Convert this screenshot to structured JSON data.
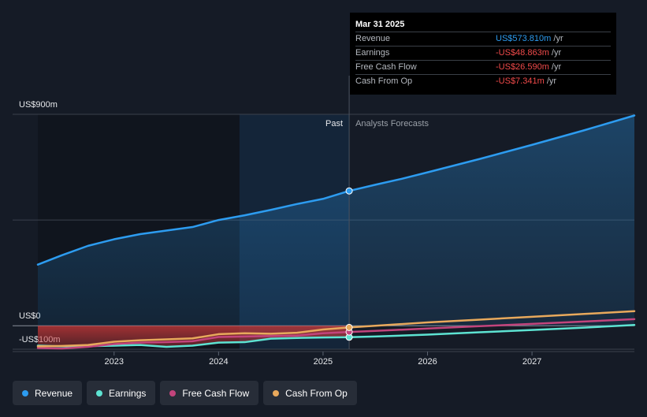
{
  "tooltip": {
    "date": "Mar 31 2025",
    "rows": [
      {
        "label": "Revenue",
        "value": "US$573.810m",
        "unit": " /yr",
        "color": "#2d9cf0"
      },
      {
        "label": "Earnings",
        "value": "-US$48.863m",
        "unit": " /yr",
        "color": "#f04a4a"
      },
      {
        "label": "Free Cash Flow",
        "value": "-US$26.590m",
        "unit": " /yr",
        "color": "#f04a4a"
      },
      {
        "label": "Cash From Op",
        "value": "-US$7.341m",
        "unit": " /yr",
        "color": "#f04a4a"
      }
    ]
  },
  "legend": [
    {
      "label": "Revenue",
      "color": "#2d9cf0"
    },
    {
      "label": "Earnings",
      "color": "#5de3d2"
    },
    {
      "label": "Free Cash Flow",
      "color": "#c2447c"
    },
    {
      "label": "Cash From Op",
      "color": "#e8a95c"
    }
  ],
  "chart_data": {
    "type": "line",
    "y_tick_labels": [
      "US$900m",
      "US$0",
      "-US$100m"
    ],
    "x_tick_labels": [
      "2023",
      "2024",
      "2025",
      "2026",
      "2027"
    ],
    "ylim": [
      -100,
      900
    ],
    "xlim": [
      2022.27,
      2027.98
    ],
    "past_label": "Past",
    "forecast_label": "Analysts Forecasts",
    "divider_x": 2025.25,
    "grid": true,
    "series": [
      {
        "name": "Revenue",
        "color": "#2d9cf0",
        "x": [
          2022.27,
          2022.5,
          2022.75,
          2023.0,
          2023.25,
          2023.5,
          2023.75,
          2024.0,
          2024.25,
          2024.5,
          2024.75,
          2025.0,
          2025.25,
          2025.5,
          2025.75,
          2026.0,
          2026.5,
          2027.0,
          2027.5,
          2027.98
        ],
        "y": [
          260,
          300,
          340,
          368,
          390,
          405,
          420,
          450,
          470,
          493,
          518,
          540,
          573.81,
          600,
          625,
          653,
          710,
          770,
          832,
          895
        ]
      },
      {
        "name": "Earnings",
        "color": "#5de3d2",
        "x": [
          2022.27,
          2022.5,
          2022.75,
          2023.0,
          2023.25,
          2023.5,
          2023.75,
          2024.0,
          2024.25,
          2024.5,
          2024.75,
          2025.0,
          2025.25,
          2025.5,
          2026.0,
          2026.5,
          2027.0,
          2027.5,
          2027.98
        ],
        "y": [
          -85,
          -88,
          -87,
          -85,
          -82,
          -90,
          -85,
          -72,
          -70,
          -55,
          -52,
          -50,
          -48.863,
          -46,
          -38,
          -28,
          -18,
          -8,
          3
        ]
      },
      {
        "name": "Free Cash Flow",
        "color": "#c2447c",
        "x": [
          2022.27,
          2022.5,
          2022.75,
          2023.0,
          2023.25,
          2023.5,
          2023.75,
          2024.0,
          2024.25,
          2024.5,
          2024.75,
          2025.0,
          2025.25,
          2025.5,
          2026.0,
          2026.5,
          2027.0,
          2027.5,
          2027.98
        ],
        "y": [
          -95,
          -97,
          -90,
          -78,
          -72,
          -70,
          -66,
          -48,
          -46,
          -44,
          -42,
          -32,
          -26.59,
          -22,
          -12,
          -2,
          8,
          18,
          28
        ]
      },
      {
        "name": "Cash From Op",
        "color": "#e8a95c",
        "x": [
          2022.27,
          2022.5,
          2022.75,
          2023.0,
          2023.25,
          2023.5,
          2023.75,
          2024.0,
          2024.25,
          2024.5,
          2024.75,
          2025.0,
          2025.25,
          2025.5,
          2026.0,
          2026.5,
          2027.0,
          2027.5,
          2027.98
        ],
        "y": [
          -88,
          -86,
          -82,
          -68,
          -62,
          -58,
          -54,
          -36,
          -32,
          -34,
          -30,
          -16,
          -7.341,
          0,
          14,
          26,
          38,
          50,
          62
        ]
      }
    ]
  }
}
